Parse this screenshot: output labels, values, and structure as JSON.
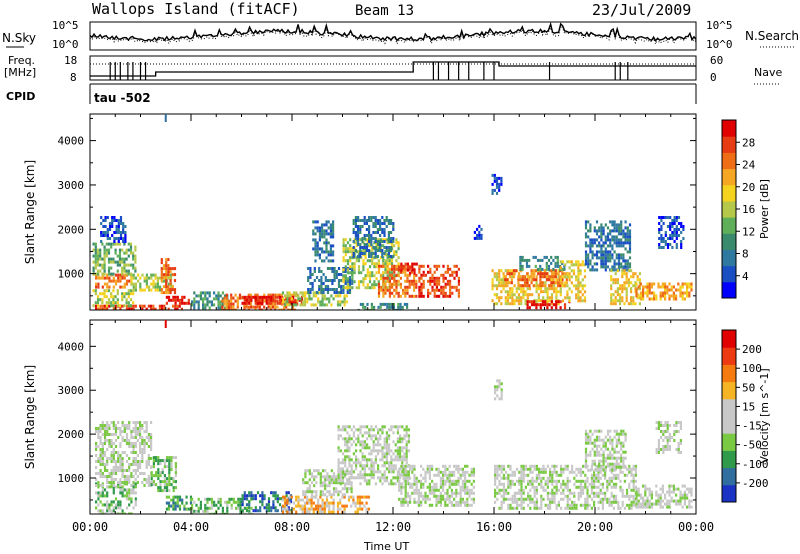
{
  "header": {
    "station": "Wallops Island (fitACF)",
    "beam": "Beam 13",
    "date": "23/Jul/2009"
  },
  "small_panels": {
    "nsky_label": "N.Sky",
    "nsearch_label": "N.Search",
    "nave_label": "Nave",
    "freq_label_1": "Freq.",
    "freq_label_2": "[MHz]",
    "cpid_label": "CPID",
    "cpid_value": "tau -502",
    "noise_ticks_left": [
      "10^5",
      "10^0"
    ],
    "noise_ticks_right": [
      "10^5",
      "10^0"
    ],
    "freq_ticks_left": [
      "18",
      "8"
    ],
    "nave_ticks_right": [
      "60",
      "0"
    ]
  },
  "chart_data": [
    {
      "type": "heatmap",
      "name": "power",
      "ylabel": "Slant Range [km]",
      "ylim": [
        180,
        4600
      ],
      "y_ticks": [
        1000,
        2000,
        3000,
        4000
      ],
      "x_ticks": [
        "00:00",
        "04:00",
        "08:00",
        "12:00",
        "16:00",
        "20:00",
        "00:00"
      ],
      "xlim_hours": [
        0,
        24
      ],
      "colorbar": {
        "label": "Power [dB]",
        "ticks": [
          "4",
          "8",
          "12",
          "16",
          "20",
          "24",
          "28"
        ],
        "colors": [
          "#0000ff",
          "#1a4fc4",
          "#2f78a0",
          "#3a8a6e",
          "#5fae5a",
          "#b6c84a",
          "#f5d21e",
          "#f5a623",
          "#f06d18",
          "#e63b13",
          "#e00000"
        ]
      },
      "regions": [
        {
          "t": [
            0.2,
            3.6
          ],
          "r": [
            190,
            300
          ],
          "level": 9
        },
        {
          "t": [
            0.1,
            1.7
          ],
          "r": [
            300,
            650
          ],
          "level": 5
        },
        {
          "t": [
            0.2,
            1.6
          ],
          "r": [
            700,
            1000
          ],
          "level": 8
        },
        {
          "t": [
            0.1,
            1.8
          ],
          "r": [
            1000,
            1700
          ],
          "level": 4
        },
        {
          "t": [
            0.4,
            1.4
          ],
          "r": [
            1700,
            2300
          ],
          "level": 1
        },
        {
          "t": [
            1.6,
            3.2
          ],
          "r": [
            650,
            1000
          ],
          "level": 5
        },
        {
          "t": [
            2.8,
            3.4
          ],
          "r": [
            600,
            1350
          ],
          "level": 8
        },
        {
          "t": [
            3.0,
            3.9
          ],
          "r": [
            350,
            500
          ],
          "level": 10
        },
        {
          "t": [
            4.0,
            5.4
          ],
          "r": [
            230,
            600
          ],
          "level": 3
        },
        {
          "t": [
            5.2,
            8.2
          ],
          "r": [
            190,
            550
          ],
          "level": 8
        },
        {
          "t": [
            6.0,
            8.4
          ],
          "r": [
            300,
            500
          ],
          "level": 10
        },
        {
          "t": [
            7.6,
            10.2
          ],
          "r": [
            300,
            600
          ],
          "level": 5
        },
        {
          "t": [
            8.6,
            10.4
          ],
          "r": [
            600,
            1150
          ],
          "level": 2
        },
        {
          "t": [
            8.8,
            9.6
          ],
          "r": [
            1300,
            2200
          ],
          "level": 2
        },
        {
          "t": [
            10.0,
            12.2
          ],
          "r": [
            700,
            1800
          ],
          "level": 5
        },
        {
          "t": [
            10.4,
            12.0
          ],
          "r": [
            1400,
            2300
          ],
          "level": 2
        },
        {
          "t": [
            11.4,
            12.9
          ],
          "r": [
            500,
            1200
          ],
          "level": 8
        },
        {
          "t": [
            12.2,
            12.9
          ],
          "r": [
            1000,
            1250
          ],
          "level": 10
        },
        {
          "t": [
            10.6,
            12.6
          ],
          "r": [
            190,
            340
          ],
          "level": 3
        },
        {
          "t": [
            13.0,
            14.6
          ],
          "r": [
            500,
            1200
          ],
          "level": 9
        },
        {
          "t": [
            15.2,
            15.5
          ],
          "r": [
            1800,
            2100
          ],
          "level": 1
        },
        {
          "t": [
            15.9,
            16.3
          ],
          "r": [
            2800,
            3250
          ],
          "level": 1
        },
        {
          "t": [
            15.9,
            18.6
          ],
          "r": [
            300,
            1100
          ],
          "level": 6
        },
        {
          "t": [
            16.4,
            19.0
          ],
          "r": [
            700,
            1100
          ],
          "level": 8
        },
        {
          "t": [
            17.0,
            18.8
          ],
          "r": [
            1100,
            1400
          ],
          "level": 3
        },
        {
          "t": [
            17.2,
            19.0
          ],
          "r": [
            250,
            400
          ],
          "level": 10
        },
        {
          "t": [
            18.6,
            19.6
          ],
          "r": [
            400,
            1300
          ],
          "level": 6
        },
        {
          "t": [
            19.6,
            21.4
          ],
          "r": [
            1100,
            2200
          ],
          "level": 2
        },
        {
          "t": [
            20.6,
            21.8
          ],
          "r": [
            300,
            1100
          ],
          "level": 6
        },
        {
          "t": [
            21.6,
            23.8
          ],
          "r": [
            400,
            800
          ],
          "level": 7
        },
        {
          "t": [
            22.5,
            23.5
          ],
          "r": [
            1600,
            2300
          ],
          "level": 1
        }
      ]
    },
    {
      "type": "heatmap",
      "name": "velocity",
      "ylabel": "Slant Range [km]",
      "ylim": [
        180,
        4600
      ],
      "y_ticks": [
        1000,
        2000,
        3000,
        4000
      ],
      "x_ticks": [
        "00:00",
        "04:00",
        "08:00",
        "12:00",
        "16:00",
        "20:00",
        "00:00"
      ],
      "xlabel": "Time UT",
      "xlim_hours": [
        0,
        24
      ],
      "colorbar": {
        "label": "Velocity [m s^-1]",
        "ticks": [
          "200",
          "100",
          "50",
          "15",
          "-15",
          "-50",
          "-100",
          "-200"
        ],
        "colors": [
          "#1a33c4",
          "#2f6e9e",
          "#2f9a4a",
          "#7ac943",
          "#c8c8c8",
          "#c8c8c8",
          "#f5b423",
          "#f57a10",
          "#ee3a10",
          "#e00000"
        ]
      },
      "regions": [
        {
          "t": [
            0.2,
            1.8
          ],
          "r": [
            200,
            900
          ],
          "level": 3
        },
        {
          "t": [
            0.2,
            2.4
          ],
          "r": [
            800,
            2300
          ],
          "level": 4
        },
        {
          "t": [
            2.4,
            3.4
          ],
          "r": [
            700,
            1500
          ],
          "level": 3
        },
        {
          "t": [
            3.0,
            4.0
          ],
          "r": [
            300,
            600
          ],
          "level": 2
        },
        {
          "t": [
            4.0,
            6.4
          ],
          "r": [
            200,
            550
          ],
          "level": 3
        },
        {
          "t": [
            6.0,
            8.0
          ],
          "r": [
            250,
            700
          ],
          "level": 1
        },
        {
          "t": [
            7.6,
            11.0
          ],
          "r": [
            200,
            600
          ],
          "level": 6
        },
        {
          "t": [
            8.4,
            10.4
          ],
          "r": [
            600,
            1200
          ],
          "level": 4
        },
        {
          "t": [
            9.8,
            12.6
          ],
          "r": [
            900,
            2200
          ],
          "level": 4
        },
        {
          "t": [
            12.2,
            15.2
          ],
          "r": [
            400,
            1300
          ],
          "level": 4
        },
        {
          "t": [
            16.0,
            21.6
          ],
          "r": [
            300,
            1300
          ],
          "level": 4
        },
        {
          "t": [
            16.0,
            16.3
          ],
          "r": [
            2800,
            3250
          ],
          "level": 4
        },
        {
          "t": [
            19.6,
            21.2
          ],
          "r": [
            1200,
            2100
          ],
          "level": 4
        },
        {
          "t": [
            21.6,
            23.8
          ],
          "r": [
            350,
            850
          ],
          "level": 4
        },
        {
          "t": [
            22.4,
            23.4
          ],
          "r": [
            1600,
            2300
          ],
          "level": 4
        }
      ]
    }
  ],
  "markers": {
    "vel_top_marker_hours": 3.0
  }
}
